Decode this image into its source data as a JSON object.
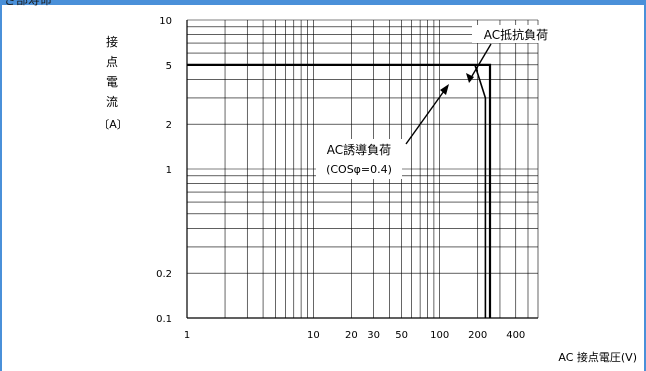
{
  "header": {
    "clipped_text": "さ部寿命"
  },
  "chart_data": {
    "type": "line",
    "xscale": "log",
    "yscale": "log",
    "xlim": [
      1,
      600
    ],
    "ylim": [
      0.1,
      10
    ],
    "grid": true,
    "ylabel_chars": [
      "接",
      "点",
      "電",
      "流"
    ],
    "ylabel_unit": "〔A〕",
    "xlabel": "AC 接点電圧(V)",
    "x_ticks": [
      {
        "value": 1,
        "label": "1"
      },
      {
        "value": 10,
        "label": "10"
      },
      {
        "value": 20,
        "label": "20"
      },
      {
        "value": 30,
        "label": "30"
      },
      {
        "value": 50,
        "label": "50"
      },
      {
        "value": 100,
        "label": "100"
      },
      {
        "value": 200,
        "label": "200"
      },
      {
        "value": 400,
        "label": "400"
      }
    ],
    "y_ticks": [
      {
        "value": 10,
        "label": "10"
      },
      {
        "value": 5,
        "label": "5"
      },
      {
        "value": 2,
        "label": "2"
      },
      {
        "value": 1,
        "label": "1"
      },
      {
        "value": 0.2,
        "label": "0.2"
      },
      {
        "value": 0.1,
        "label": "0.1"
      }
    ],
    "series": [
      {
        "name": "AC抵抗負荷",
        "points": [
          [
            1,
            5
          ],
          [
            250,
            5
          ],
          [
            250,
            0.1
          ]
        ]
      },
      {
        "name": "AC誘導負荷",
        "subname": "(COSφ=0.4)",
        "points": [
          [
            1,
            5
          ],
          [
            190,
            5
          ],
          [
            230,
            3
          ],
          [
            230,
            0.1
          ]
        ]
      }
    ],
    "annotations": [
      {
        "text": "AC抵抗負荷"
      },
      {
        "text": "AC誘導負荷"
      },
      {
        "text": "(COSφ=0.4)"
      }
    ]
  }
}
